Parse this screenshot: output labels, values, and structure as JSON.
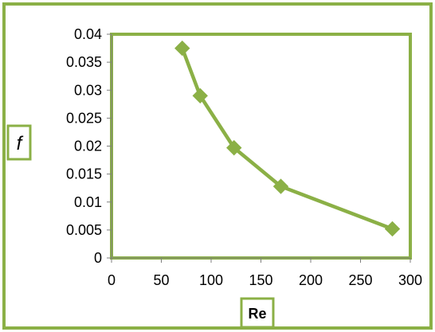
{
  "colors": {
    "accent": "#8bb046",
    "border": "#8bb046",
    "axis": "#7f7f7f",
    "text": "#000000"
  },
  "chart_data": {
    "type": "line",
    "title": "",
    "xlabel": "Re",
    "ylabel": "f",
    "xlim": [
      0,
      300
    ],
    "ylim": [
      0,
      0.04
    ],
    "x_ticks": [
      "0",
      "50",
      "100",
      "150",
      "200",
      "250",
      "300"
    ],
    "y_ticks": [
      "0",
      "0.005",
      "0.01",
      "0.015",
      "0.02",
      "0.025",
      "0.03",
      "0.035",
      "0.04"
    ],
    "grid": false,
    "legend": "none",
    "marker": "diamond",
    "series": [
      {
        "x": [
          71,
          89,
          123,
          170,
          282
        ],
        "y": [
          0.0375,
          0.029,
          0.0197,
          0.0128,
          0.0052
        ]
      }
    ]
  }
}
